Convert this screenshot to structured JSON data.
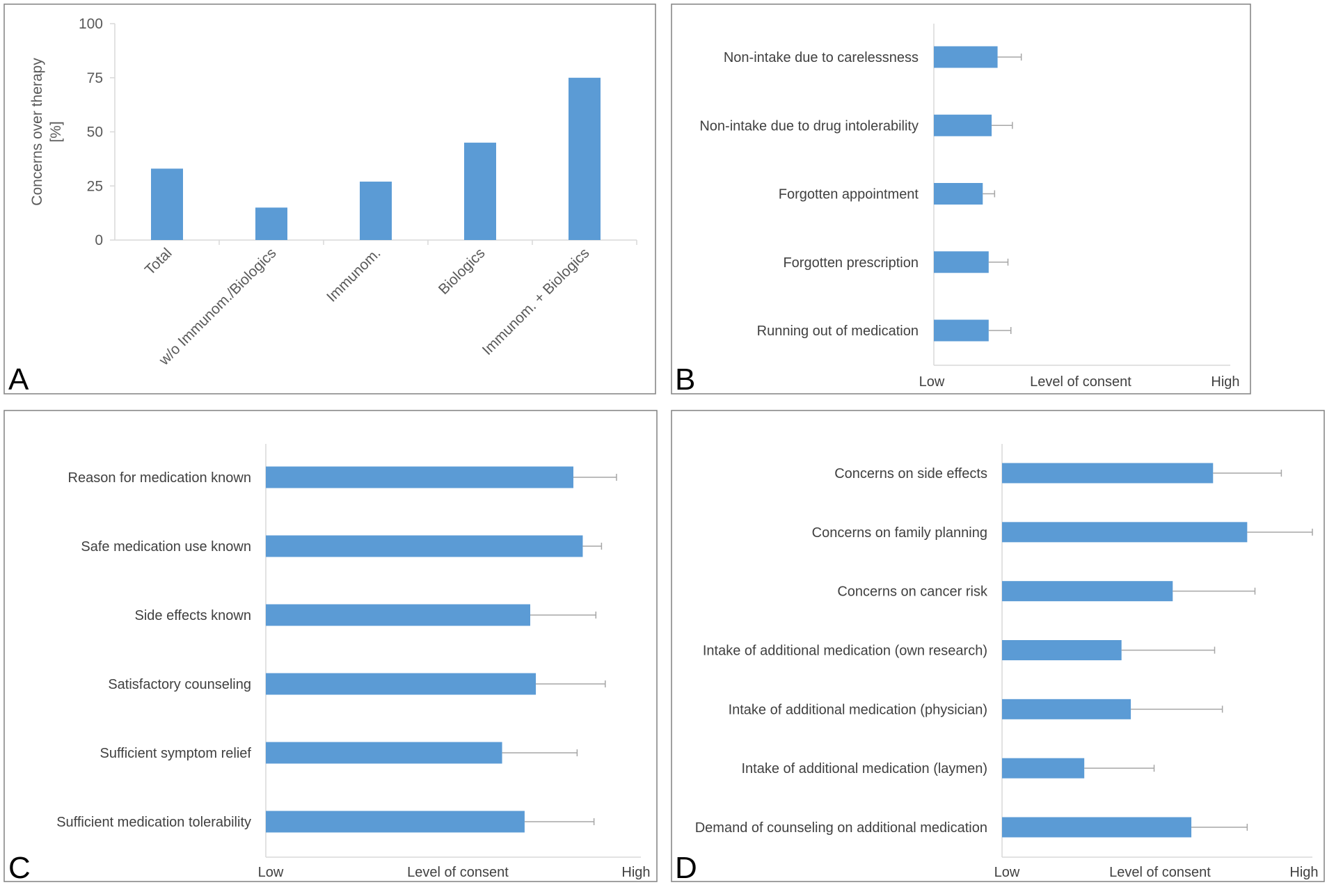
{
  "colors": {
    "bar": "#5b9bd5",
    "error_bar": "#a6a6a6",
    "axis": "#d9d9d9",
    "frame": "#808080"
  },
  "chart_data": [
    {
      "panel": "A",
      "type": "bar",
      "title": "",
      "ylabel": "Concerns over therapy [%]",
      "ylabel_lines": [
        "Concerns over therapy",
        "[%]"
      ],
      "xlabel": "",
      "ylim": [
        0,
        100
      ],
      "yticks": [
        0,
        25,
        50,
        75,
        100
      ],
      "categories": [
        "Total",
        "w/o Immunom./Biologics",
        "Immunom.",
        "Biologics",
        "Immunom. + Biologics"
      ],
      "values": [
        33,
        15,
        27,
        45,
        75
      ],
      "grid": false
    },
    {
      "panel": "B",
      "type": "bar",
      "orientation": "horizontal",
      "xlabel": "Level of consent",
      "axis_low": "Low",
      "axis_high": "High",
      "xlim": [
        0,
        1
      ],
      "categories": [
        "Non-intake due to carelessness",
        "Non-intake due to drug intolerability",
        "Forgotten appointment",
        "Forgotten prescription",
        "Running out of medication"
      ],
      "values": [
        0.215,
        0.195,
        0.165,
        0.185,
        0.185
      ],
      "errors": [
        0.08,
        0.07,
        0.04,
        0.065,
        0.075
      ]
    },
    {
      "panel": "C",
      "type": "bar",
      "orientation": "horizontal",
      "xlabel": "Level of consent",
      "axis_low": "Low",
      "axis_high": "High",
      "xlim": [
        0,
        1
      ],
      "categories": [
        "Reason for medication known",
        "Safe medication use known",
        "Side effects known",
        "Satisfactory counseling",
        "Sufficient symptom relief",
        "Sufficient medication tolerability"
      ],
      "values": [
        0.82,
        0.845,
        0.705,
        0.72,
        0.63,
        0.69
      ],
      "errors": [
        0.115,
        0.05,
        0.175,
        0.185,
        0.2,
        0.185
      ]
    },
    {
      "panel": "D",
      "type": "bar",
      "orientation": "horizontal",
      "xlabel": "Level of consent",
      "axis_low": "Low",
      "axis_high": "High",
      "xlim": [
        0,
        1
      ],
      "categories": [
        "Concerns on side effects",
        "Concerns on family planning",
        "Concerns on cancer risk",
        "Intake of additional medication (own research)",
        "Intake of additional medication (physician)",
        "Intake of additional medication (laymen)",
        "Demand of counseling on additional medication"
      ],
      "values": [
        0.68,
        0.79,
        0.55,
        0.385,
        0.415,
        0.265,
        0.61
      ],
      "errors": [
        0.22,
        0.21,
        0.265,
        0.3,
        0.295,
        0.225,
        0.18
      ]
    }
  ]
}
